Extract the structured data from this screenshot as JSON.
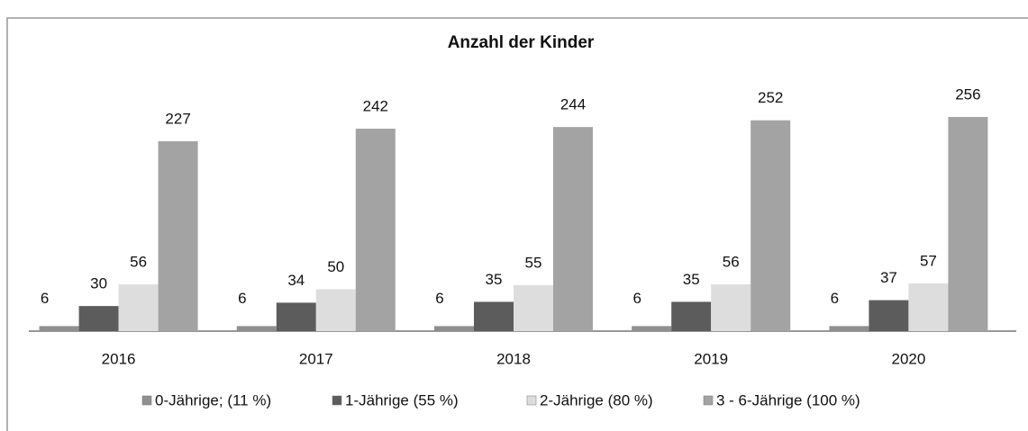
{
  "chart_data": {
    "type": "bar",
    "title": "Anzahl der Kinder",
    "categories": [
      "2016",
      "2017",
      "2018",
      "2019",
      "2020"
    ],
    "series": [
      {
        "name": "0-Jährige; (11 %)",
        "color": "#8f8f8f",
        "values": [
          6,
          6,
          6,
          6,
          6
        ]
      },
      {
        "name": "1-Jährige (55 %)",
        "color": "#5c5c5c",
        "values": [
          30,
          34,
          35,
          35,
          37
        ]
      },
      {
        "name": "2-Jährige (80 %)",
        "color": "#dddddd",
        "values": [
          56,
          50,
          55,
          56,
          57
        ]
      },
      {
        "name": "3 - 6-Jährige (100 %)",
        "color": "#a3a3a3",
        "values": [
          227,
          242,
          244,
          252,
          256
        ]
      }
    ],
    "legend": "bottom"
  }
}
